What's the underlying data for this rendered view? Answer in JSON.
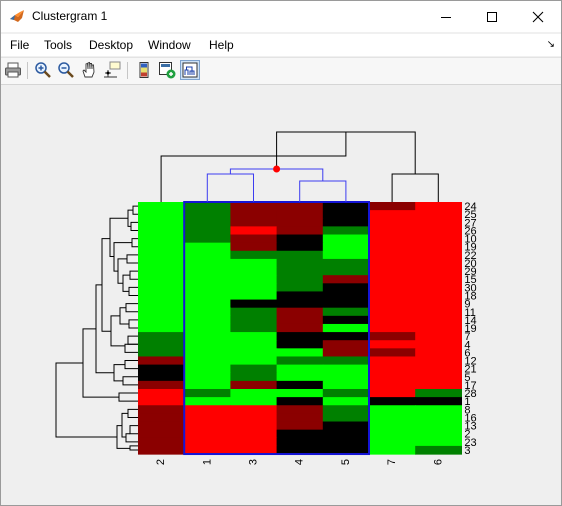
{
  "window": {
    "title": "Clustergram 1",
    "controls": {
      "minimize": "minimize",
      "maximize": "maximize",
      "close": "close"
    }
  },
  "menu": {
    "items": [
      "File",
      "Tools",
      "Desktop",
      "Window",
      "Help"
    ],
    "dock_arrow": "↘"
  },
  "toolbar": {
    "buttons": [
      {
        "icon": "print-icon",
        "active": false
      },
      {
        "icon": "zoom-in-icon",
        "active": false
      },
      {
        "icon": "zoom-out-icon",
        "active": false
      },
      {
        "icon": "pan-hand-icon",
        "active": false
      },
      {
        "icon": "data-cursor-icon",
        "active": false
      },
      {
        "icon": "colorbar-icon",
        "active": false
      },
      {
        "icon": "export-group-icon",
        "active": false
      },
      {
        "icon": "dendrogram-toggle-icon",
        "active": true
      }
    ]
  },
  "heatmap": {
    "columns": [
      "2",
      "1",
      "3",
      "4",
      "5",
      "7",
      "6"
    ],
    "rows": [
      "24",
      "25",
      "27",
      "26",
      "10",
      "19",
      "22",
      "20",
      "29",
      "15",
      "30",
      "18",
      "9",
      "11",
      "14",
      "19",
      "7",
      "4",
      "6",
      "12",
      "21",
      "5",
      "17",
      "28",
      "1",
      "8",
      "16",
      "13",
      "2",
      "23",
      "3"
    ],
    "colors": {
      "bright_green": "#00ff00",
      "dark_green": "#008000",
      "bright_red": "#ff0000",
      "dark_red": "#8b0000",
      "black": "#000000",
      "selection": "#1515d6",
      "dendrogram_highlight": "#3c3cf0",
      "dendrogram_node": "#ff0000"
    },
    "cells": [
      [
        "g0",
        "g1",
        "r1",
        "r1",
        "k",
        "r1",
        "r0"
      ],
      [
        "g0",
        "g1",
        "r1",
        "r1",
        "k",
        "r0",
        "r0"
      ],
      [
        "g0",
        "g1",
        "r1",
        "r1",
        "k",
        "r0",
        "r0"
      ],
      [
        "g0",
        "g1",
        "r0",
        "r1",
        "g1",
        "r0",
        "r0"
      ],
      [
        "g0",
        "g1",
        "r1",
        "k",
        "g0",
        "r0",
        "r0"
      ],
      [
        "g0",
        "g0",
        "r1",
        "k",
        "g0",
        "r0",
        "r0"
      ],
      [
        "g0",
        "g0",
        "g1",
        "g1",
        "g0",
        "r0",
        "r0"
      ],
      [
        "g0",
        "g0",
        "g0",
        "g1",
        "g1",
        "r0",
        "r0"
      ],
      [
        "g0",
        "g0",
        "g0",
        "g1",
        "g1",
        "r0",
        "r0"
      ],
      [
        "g0",
        "g0",
        "g0",
        "g1",
        "r1",
        "r0",
        "r0"
      ],
      [
        "g0",
        "g0",
        "g0",
        "g1",
        "k",
        "r0",
        "r0"
      ],
      [
        "g0",
        "g0",
        "g0",
        "k",
        "k",
        "r0",
        "r0"
      ],
      [
        "g0",
        "g0",
        "k",
        "k",
        "k",
        "r0",
        "r0"
      ],
      [
        "g0",
        "g0",
        "g1",
        "r1",
        "g1",
        "r0",
        "r0"
      ],
      [
        "g0",
        "g0",
        "g1",
        "r1",
        "k",
        "r0",
        "r0"
      ],
      [
        "g0",
        "g0",
        "g1",
        "r1",
        "g0",
        "r0",
        "r0"
      ],
      [
        "g1",
        "g0",
        "g0",
        "k",
        "k",
        "r1",
        "r0"
      ],
      [
        "g1",
        "g0",
        "g0",
        "k",
        "r1",
        "r0",
        "r0"
      ],
      [
        "g1",
        "g0",
        "g0",
        "g0",
        "r1",
        "r1",
        "r0"
      ],
      [
        "r1",
        "g0",
        "g0",
        "g1",
        "g1",
        "r0",
        "r0"
      ],
      [
        "k",
        "g0",
        "g1",
        "g0",
        "g0",
        "r0",
        "r0"
      ],
      [
        "k",
        "g0",
        "g1",
        "g0",
        "g0",
        "r0",
        "r0"
      ],
      [
        "r1",
        "g0",
        "r1",
        "k",
        "g0",
        "r0",
        "r0"
      ],
      [
        "r0",
        "g1",
        "g0",
        "g0",
        "g1",
        "r0",
        "g1"
      ],
      [
        "r0",
        "g0",
        "g0",
        "k",
        "g0",
        "k",
        "k"
      ],
      [
        "r1",
        "r0",
        "r0",
        "r1",
        "g1",
        "g0",
        "g0"
      ],
      [
        "r1",
        "r0",
        "r0",
        "r1",
        "g1",
        "g0",
        "g0"
      ],
      [
        "r1",
        "r0",
        "r0",
        "r1",
        "k",
        "g0",
        "g0"
      ],
      [
        "r1",
        "r0",
        "r0",
        "k",
        "k",
        "g0",
        "g0"
      ],
      [
        "r1",
        "r0",
        "r0",
        "k",
        "k",
        "g0",
        "g0"
      ],
      [
        "r1",
        "r0",
        "r0",
        "k",
        "k",
        "g0",
        "g1"
      ]
    ]
  }
}
